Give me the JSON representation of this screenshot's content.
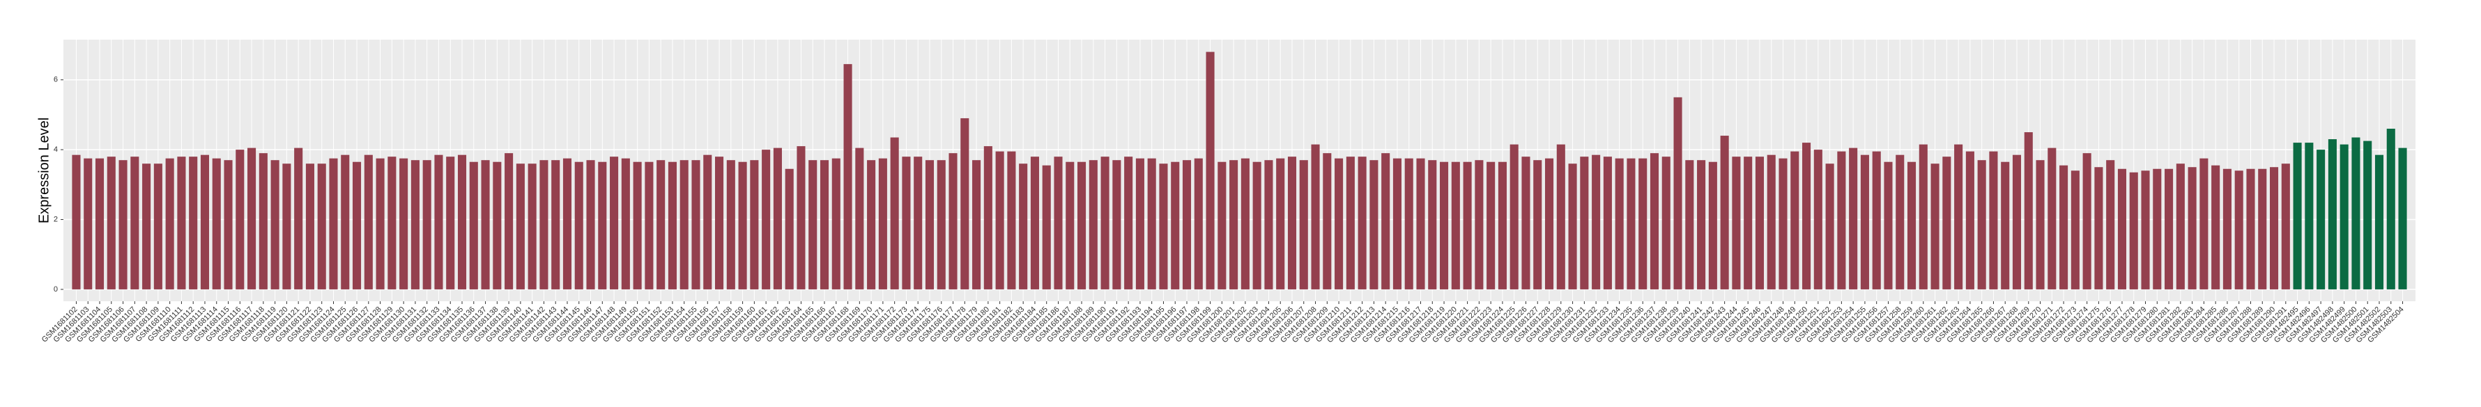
{
  "chart_data": {
    "type": "bar",
    "y_label": "Expression Level",
    "ylim": [
      -0.34,
      7.15
    ],
    "yticks": [
      0,
      2,
      4,
      6
    ],
    "grid": true,
    "groups": [
      {
        "color": "#94404e",
        "categories": [
          "GSM1681102",
          "GSM1681103",
          "GSM1681104",
          "GSM1681105",
          "GSM1681106",
          "GSM1681107",
          "GSM1681108",
          "GSM1681109",
          "GSM1681110",
          "GSM1681111",
          "GSM1681112",
          "GSM1681113",
          "GSM1681114",
          "GSM1681115",
          "GSM1681116",
          "GSM1681117",
          "GSM1681118",
          "GSM1681119",
          "GSM1681120",
          "GSM1681121",
          "GSM1681122",
          "GSM1681123",
          "GSM1681124",
          "GSM1681125",
          "GSM1681126",
          "GSM1681127",
          "GSM1681128",
          "GSM1681129",
          "GSM1681130",
          "GSM1681131",
          "GSM1681132",
          "GSM1681133",
          "GSM1681134",
          "GSM1681135",
          "GSM1681136",
          "GSM1681137",
          "GSM1681138",
          "GSM1681139",
          "GSM1681140",
          "GSM1681141",
          "GSM1681142",
          "GSM1681143",
          "GSM1681144",
          "GSM1681145",
          "GSM1681146",
          "GSM1681147",
          "GSM1681148",
          "GSM1681149",
          "GSM1681150",
          "GSM1681151",
          "GSM1681152",
          "GSM1681153",
          "GSM1681154",
          "GSM1681155",
          "GSM1681156",
          "GSM1681157",
          "GSM1681158",
          "GSM1681159",
          "GSM1681160",
          "GSM1681161",
          "GSM1681162",
          "GSM1681163",
          "GSM1681164",
          "GSM1681165",
          "GSM1681166",
          "GSM1681167",
          "GSM1681168",
          "GSM1681169",
          "GSM1681170",
          "GSM1681171",
          "GSM1681172",
          "GSM1681173",
          "GSM1681174",
          "GSM1681175",
          "GSM1681176",
          "GSM1681177",
          "GSM1681178",
          "GSM1681179",
          "GSM1681180",
          "GSM1681181",
          "GSM1681182",
          "GSM1681183",
          "GSM1681184",
          "GSM1681185",
          "GSM1681186",
          "GSM1681187",
          "GSM1681188",
          "GSM1681189",
          "GSM1681190",
          "GSM1681191",
          "GSM1681192",
          "GSM1681193",
          "GSM1681194",
          "GSM1681195",
          "GSM1681196",
          "GSM1681197",
          "GSM1681198",
          "GSM1681199",
          "GSM1681200",
          "GSM1681201",
          "GSM1681202",
          "GSM1681203",
          "GSM1681204",
          "GSM1681205",
          "GSM1681206",
          "GSM1681207",
          "GSM1681208",
          "GSM1681209",
          "GSM1681210",
          "GSM1681211",
          "GSM1681212",
          "GSM1681213",
          "GSM1681214",
          "GSM1681215",
          "GSM1681216",
          "GSM1681217",
          "GSM1681218",
          "GSM1681219",
          "GSM1681220",
          "GSM1681221",
          "GSM1681222",
          "GSM1681223",
          "GSM1681224",
          "GSM1681225",
          "GSM1681226",
          "GSM1681227",
          "GSM1681228",
          "GSM1681229",
          "GSM1681230",
          "GSM1681231",
          "GSM1681232",
          "GSM1681233",
          "GSM1681234",
          "GSM1681235",
          "GSM1681236",
          "GSM1681237",
          "GSM1681238",
          "GSM1681239",
          "GSM1681240",
          "GSM1681241",
          "GSM1681242",
          "GSM1681243",
          "GSM1681244",
          "GSM1681245",
          "GSM1681246",
          "GSM1681247",
          "GSM1681248",
          "GSM1681249",
          "GSM1681250",
          "GSM1681251",
          "GSM1681252",
          "GSM1681253",
          "GSM1681254",
          "GSM1681255",
          "GSM1681256",
          "GSM1681257",
          "GSM1681258",
          "GSM1681259",
          "GSM1681260",
          "GSM1681261",
          "GSM1681262",
          "GSM1681263",
          "GSM1681264",
          "GSM1681265",
          "GSM1681266",
          "GSM1681267",
          "GSM1681268",
          "GSM1681269",
          "GSM1681270",
          "GSM1681271",
          "GSM1681272",
          "GSM1681273",
          "GSM1681274",
          "GSM1681275",
          "GSM1681276",
          "GSM1681277",
          "GSM1681278",
          "GSM1681279",
          "GSM1681280",
          "GSM1681281",
          "GSM1681282",
          "GSM1681283",
          "GSM1681284",
          "GSM1681285",
          "GSM1681286",
          "GSM1681287",
          "GSM1681288",
          "GSM1681289",
          "GSM1681290",
          "GSM1681291"
        ],
        "values": [
          3.85,
          3.75,
          3.75,
          3.8,
          3.7,
          3.8,
          3.6,
          3.6,
          3.75,
          3.8,
          3.8,
          3.85,
          3.75,
          3.7,
          4.0,
          4.05,
          3.9,
          3.7,
          3.6,
          4.05,
          3.6,
          3.6,
          3.75,
          3.85,
          3.65,
          3.85,
          3.75,
          3.8,
          3.75,
          3.7,
          3.7,
          3.85,
          3.8,
          3.85,
          3.65,
          3.7,
          3.65,
          3.9,
          3.6,
          3.6,
          3.7,
          3.7,
          3.75,
          3.65,
          3.7,
          3.65,
          3.8,
          3.75,
          3.65,
          3.65,
          3.7,
          3.65,
          3.7,
          3.7,
          3.85,
          3.8,
          3.7,
          3.65,
          3.7,
          4.0,
          4.05,
          3.45,
          4.1,
          3.7,
          3.7,
          3.75,
          6.45,
          4.05,
          3.7,
          3.75,
          4.35,
          3.8,
          3.8,
          3.7,
          3.7,
          3.9,
          4.9,
          3.7,
          4.1,
          3.95,
          3.95,
          3.6,
          3.8,
          3.55,
          3.8,
          3.65,
          3.65,
          3.7,
          3.8,
          3.7,
          3.8,
          3.75,
          3.75,
          3.6,
          3.65,
          3.7,
          3.75,
          6.8,
          3.65,
          3.7,
          3.75,
          3.65,
          3.7,
          3.75,
          3.8,
          3.7,
          4.15,
          3.9,
          3.75,
          3.8,
          3.8,
          3.7,
          3.9,
          3.75,
          3.75,
          3.75,
          3.7,
          3.65,
          3.65,
          3.65,
          3.7,
          3.65,
          3.65,
          4.15,
          3.8,
          3.7,
          3.75,
          4.15,
          3.6,
          3.8,
          3.85,
          3.8,
          3.75,
          3.75,
          3.75,
          3.9,
          3.8,
          5.5,
          3.7,
          3.7,
          3.65,
          4.4,
          3.8,
          3.8,
          3.8,
          3.85,
          3.75,
          3.95,
          4.2,
          4.0,
          3.6,
          3.95,
          4.05,
          3.85,
          3.95,
          3.65,
          3.85,
          3.65,
          4.15,
          3.6,
          3.8,
          4.15,
          3.95,
          3.7,
          3.95,
          3.65,
          3.85,
          4.5,
          3.7,
          4.05,
          3.55,
          3.4,
          3.9,
          3.5,
          3.7,
          3.45,
          3.35,
          3.4,
          3.45,
          3.45,
          3.6,
          3.5,
          3.75,
          3.55,
          3.45,
          3.4,
          3.45,
          3.45,
          3.5,
          3.6
        ]
      },
      {
        "color": "#0b6b43",
        "categories": [
          "GSM1482495",
          "GSM1482496",
          "GSM1482497",
          "GSM1482498",
          "GSM1482499",
          "GSM1482500",
          "GSM1482501",
          "GSM1482502",
          "GSM1482503",
          "GSM1482504"
        ],
        "values": [
          4.2,
          4.2,
          4.0,
          4.3,
          4.15,
          4.35,
          4.25,
          3.85,
          4.6,
          4.05
        ]
      }
    ]
  }
}
